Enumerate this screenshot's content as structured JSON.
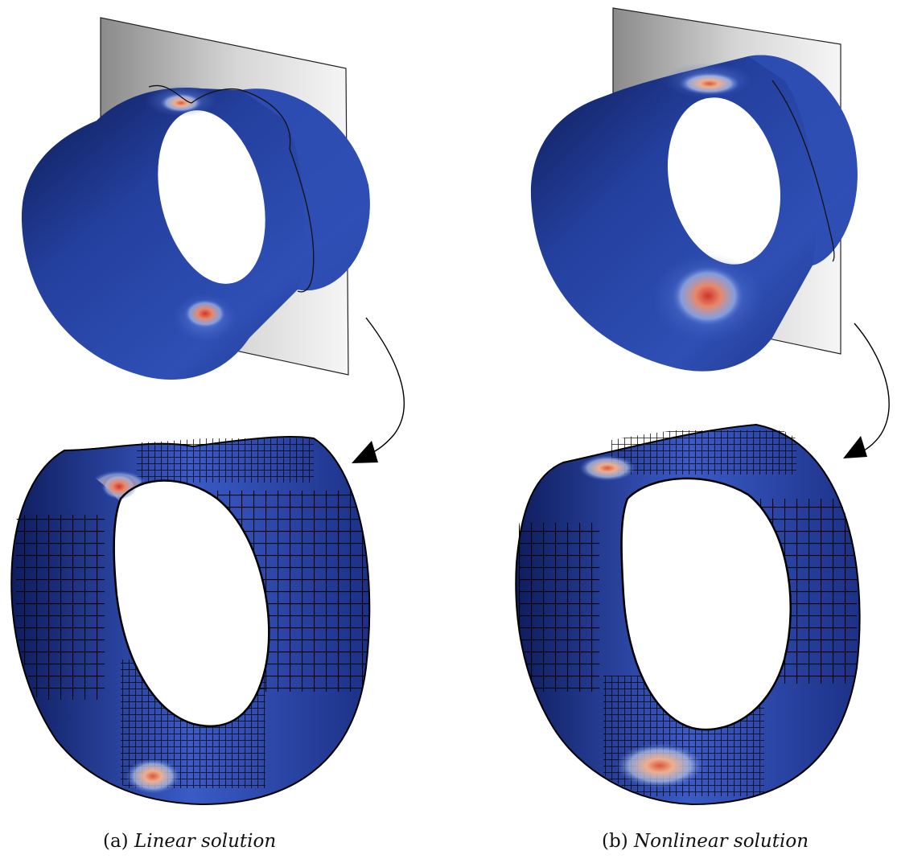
{
  "captions": {
    "a": {
      "tag": "(a)",
      "text": "Linear solution"
    },
    "b": {
      "tag": "(b)",
      "text": "Nonlinear solution"
    }
  },
  "colors": {
    "shell_dark": "#0d1a52",
    "shell_mid": "#2a45a6",
    "shell_light": "#5e82d8",
    "hotspot_red": "#d0352a",
    "hotspot_orange": "#f0a070",
    "plane_gray": "#8a8a8a",
    "mesh_line": "#000000"
  },
  "icons": {
    "arrow_a": "curved-arrow-down",
    "arrow_b": "curved-arrow-down"
  }
}
